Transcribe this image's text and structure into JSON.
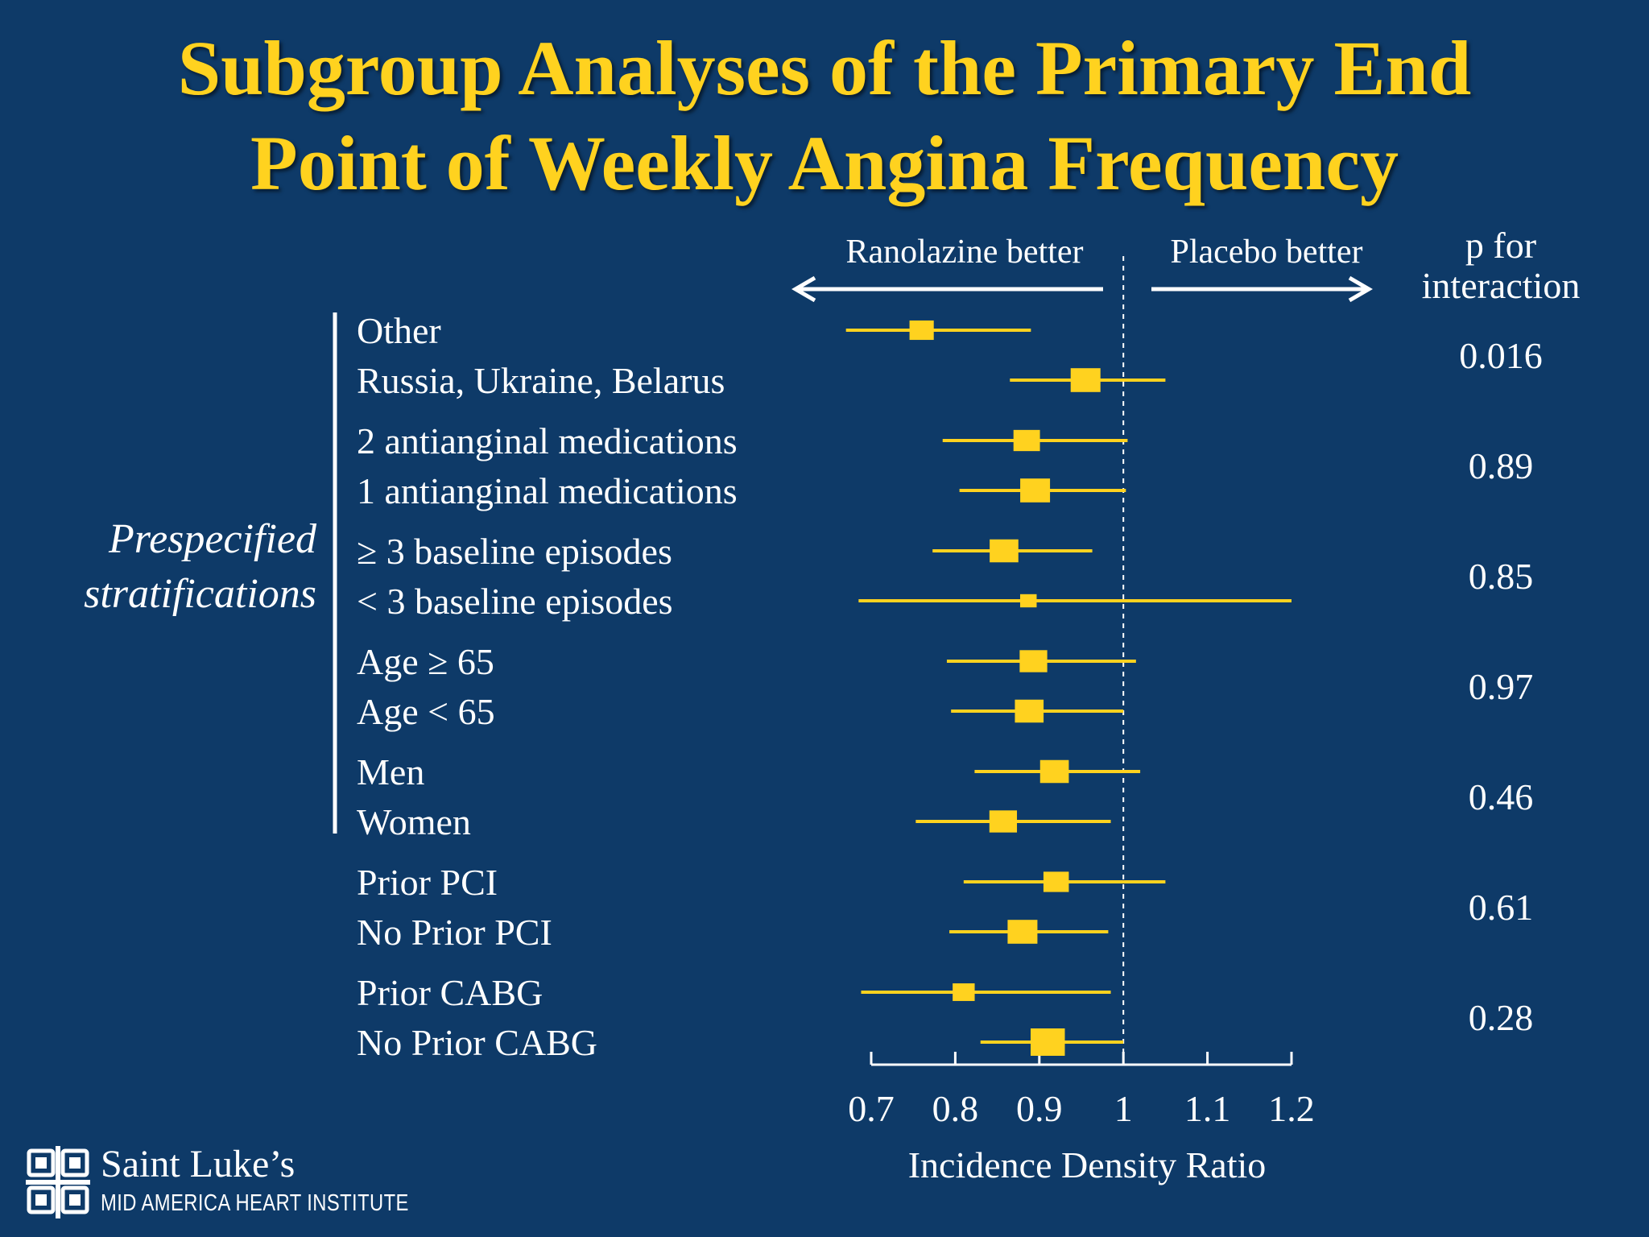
{
  "slide": {
    "title_line1": "Subgroup Analyses of the Primary End",
    "title_line2": "Point of Weekly Angina Frequency",
    "group_label_line1": "Prespecified",
    "group_label_line2": "stratifications",
    "logo": {
      "name": "Saint Luke’s",
      "subtitle": "MID AMERICA HEART INSTITUTE"
    }
  },
  "colors": {
    "background": "#0e3a68",
    "accent": "#ffd21f",
    "text": "#ffffff"
  },
  "chart_data": {
    "type": "forest",
    "title": "Subgroup Analyses of the Primary End Point of Weekly Angina Frequency",
    "xlabel": "Incidence Density Ratio",
    "xlim": [
      0.7,
      1.2
    ],
    "xticks": [
      0.7,
      0.8,
      0.9,
      1,
      1.1,
      1.2
    ],
    "xtick_labels": [
      "0.7",
      "0.8",
      "0.9",
      "1",
      "1.1",
      "1.2"
    ],
    "reference_line": 1,
    "left_direction_label": "Ranolazine better",
    "right_direction_label": "Placebo better",
    "p_column_header_line1": "p for",
    "p_column_header_line2": "interaction",
    "groups": [
      {
        "p_interaction": "0.016",
        "rows": [
          {
            "label": "Other",
            "estimate": 0.76,
            "lower": 0.67,
            "upper": 0.89,
            "weight": 0.55
          },
          {
            "label": "Russia, Ukraine, Belarus",
            "estimate": 0.955,
            "lower": 0.865,
            "upper": 1.05,
            "weight": 0.8
          }
        ]
      },
      {
        "p_interaction": "0.89",
        "rows": [
          {
            "label": "2 antianginal medications",
            "estimate": 0.885,
            "lower": 0.785,
            "upper": 1.005,
            "weight": 0.65
          },
          {
            "label": "1 antianginal medications",
            "estimate": 0.895,
            "lower": 0.805,
            "upper": 1.003,
            "weight": 0.8
          }
        ]
      },
      {
        "p_interaction": "0.85",
        "rows": [
          {
            "label": "≥ 3 baseline episodes",
            "estimate": 0.858,
            "lower": 0.773,
            "upper": 0.963,
            "weight": 0.75
          },
          {
            "label": "< 3 baseline episodes",
            "estimate": 0.887,
            "lower": 0.685,
            "upper": 1.2,
            "weight": 0.2
          }
        ]
      },
      {
        "p_interaction": "0.97",
        "rows": [
          {
            "label": "Age ≥ 65",
            "estimate": 0.893,
            "lower": 0.79,
            "upper": 1.015,
            "weight": 0.7
          },
          {
            "label": "Age < 65",
            "estimate": 0.888,
            "lower": 0.795,
            "upper": 1.0,
            "weight": 0.75
          }
        ]
      },
      {
        "p_interaction": "0.46",
        "rows": [
          {
            "label": "Men",
            "estimate": 0.918,
            "lower": 0.823,
            "upper": 1.02,
            "weight": 0.75
          },
          {
            "label": "Women",
            "estimate": 0.857,
            "lower": 0.753,
            "upper": 0.985,
            "weight": 0.7
          }
        ]
      },
      {
        "p_interaction": "0.61",
        "rows": [
          {
            "label": "Prior PCI",
            "estimate": 0.92,
            "lower": 0.81,
            "upper": 1.05,
            "weight": 0.6
          },
          {
            "label": "No Prior PCI",
            "estimate": 0.88,
            "lower": 0.793,
            "upper": 0.982,
            "weight": 0.8
          }
        ]
      },
      {
        "p_interaction": "0.28",
        "rows": [
          {
            "label": "Prior CABG",
            "estimate": 0.81,
            "lower": 0.688,
            "upper": 0.985,
            "weight": 0.45
          },
          {
            "label": "No Prior CABG",
            "estimate": 0.91,
            "lower": 0.83,
            "upper": 1.0,
            "weight": 1.0
          }
        ]
      }
    ]
  }
}
